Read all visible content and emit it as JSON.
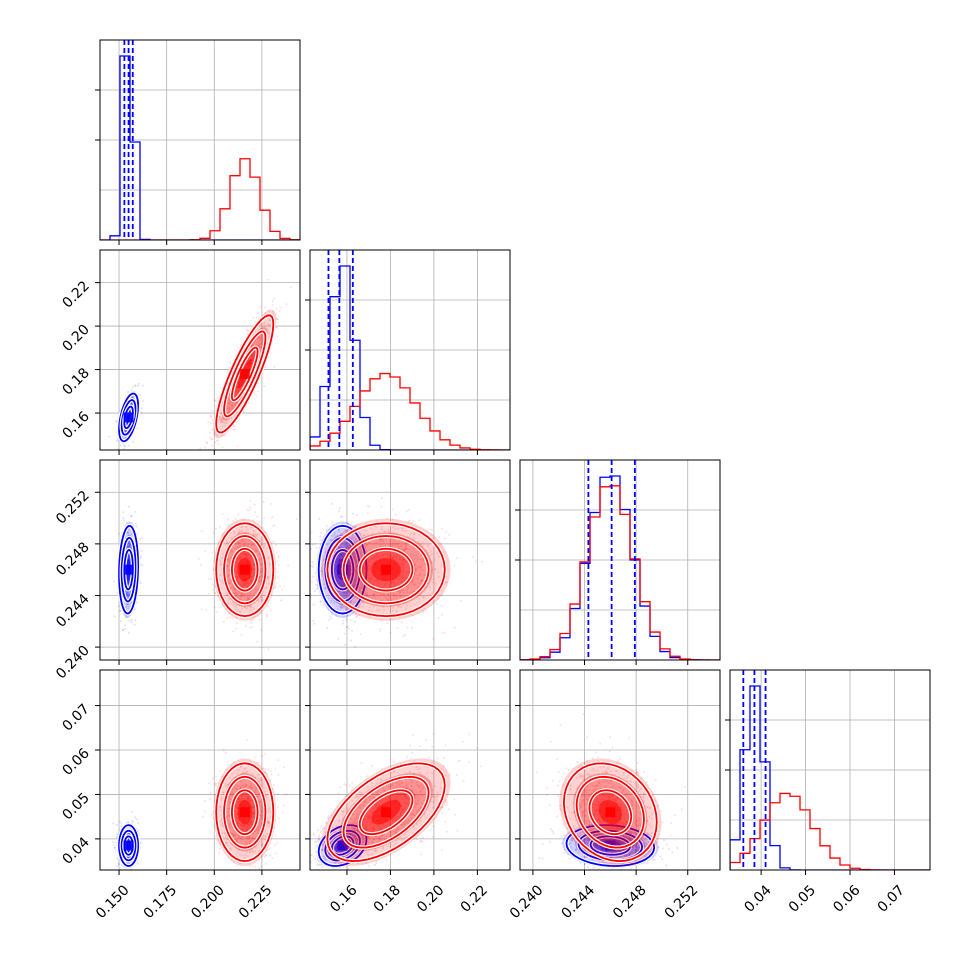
{
  "chart_data": {
    "type": "corner",
    "colors": {
      "blue": "#0000ff",
      "red": "#ff0000",
      "grid": "#b0b0b0"
    },
    "params": [
      {
        "range": [
          0.14,
          0.245
        ],
        "ticks": [
          0.15,
          0.175,
          0.2,
          0.225
        ],
        "tick_labels": [
          "0.150",
          "0.175",
          "0.200",
          "0.225"
        ]
      },
      {
        "range": [
          0.143,
          0.235
        ],
        "ticks": [
          0.16,
          0.18,
          0.2,
          0.22
        ],
        "tick_labels": [
          "0.16",
          "0.18",
          "0.20",
          "0.22"
        ]
      },
      {
        "range": [
          0.239,
          0.2545
        ],
        "ticks": [
          0.24,
          0.244,
          0.248,
          0.252
        ],
        "tick_labels": [
          "0.240",
          "0.244",
          "0.248",
          "0.252"
        ]
      },
      {
        "range": [
          0.033,
          0.078
        ],
        "ticks": [
          0.04,
          0.05,
          0.06,
          0.07
        ],
        "tick_labels": [
          "0.04",
          "0.05",
          "0.06",
          "0.07"
        ]
      }
    ],
    "series": [
      {
        "color": "blue",
        "mean": [
          0.155,
          0.158,
          0.246,
          0.0385
        ],
        "std": [
          0.0025,
          0.0055,
          0.0017,
          0.0023
        ],
        "corr": {
          "0-1": 0.5,
          "0-2": 0.1,
          "0-3": 0.0,
          "1-2": 0.0,
          "1-3": 0.3,
          "2-3": -0.1
        },
        "quantiles": [
          [
            0.1528,
            0.155,
            0.1572
          ],
          [
            0.1515,
            0.1565,
            0.1627
          ],
          [
            0.2443,
            0.2461,
            0.2479
          ],
          [
            0.036,
            0.0385,
            0.041
          ]
        ]
      },
      {
        "color": "red",
        "mean": [
          0.216,
          0.178,
          0.246,
          0.046
        ],
        "std": [
          0.0075,
          0.0135,
          0.0018,
          0.0055
        ],
        "corr": {
          "0-1": 0.85,
          "0-2": 0.0,
          "0-3": 0.0,
          "1-2": 0.0,
          "1-3": 0.55,
          "2-3": -0.2
        }
      }
    ],
    "dims": 4,
    "grid": true
  }
}
